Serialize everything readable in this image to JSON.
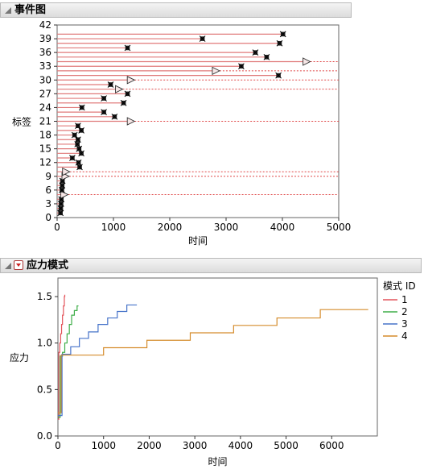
{
  "panels": {
    "event": {
      "title": "事件图"
    },
    "stress": {
      "title": "应力模式"
    }
  },
  "chart_data": [
    {
      "type": "event-plot",
      "title": "事件图",
      "xlabel": "时间",
      "ylabel": "标签",
      "xlim": [
        0,
        5000
      ],
      "ylim": [
        0,
        42
      ],
      "xticks": [
        0,
        1000,
        2000,
        3000,
        4000,
        5000
      ],
      "yticks": [
        0,
        3,
        6,
        9,
        12,
        15,
        18,
        21,
        24,
        27,
        30,
        33,
        36,
        39,
        42
      ],
      "events": [
        {
          "label": 1,
          "time": 60,
          "censored": false
        },
        {
          "label": 2,
          "time": 65,
          "censored": false
        },
        {
          "label": 3,
          "time": 70,
          "censored": false
        },
        {
          "label": 4,
          "time": 75,
          "censored": false
        },
        {
          "label": 5,
          "time": 80,
          "censored": true
        },
        {
          "label": 6,
          "time": 85,
          "censored": false
        },
        {
          "label": 7,
          "time": 90,
          "censored": false
        },
        {
          "label": 8,
          "time": 95,
          "censored": false
        },
        {
          "label": 9,
          "time": 100,
          "censored": true
        },
        {
          "label": 10,
          "time": 110,
          "censored": true
        },
        {
          "label": 11,
          "time": 400,
          "censored": false
        },
        {
          "label": 12,
          "time": 380,
          "censored": false
        },
        {
          "label": 13,
          "time": 270,
          "censored": false
        },
        {
          "label": 14,
          "time": 430,
          "censored": false
        },
        {
          "label": 15,
          "time": 390,
          "censored": false
        },
        {
          "label": 16,
          "time": 360,
          "censored": false
        },
        {
          "label": 17,
          "time": 370,
          "censored": false
        },
        {
          "label": 18,
          "time": 310,
          "censored": false
        },
        {
          "label": 19,
          "time": 430,
          "censored": false
        },
        {
          "label": 20,
          "time": 370,
          "censored": false
        },
        {
          "label": 21,
          "time": 1260,
          "censored": true
        },
        {
          "label": 22,
          "time": 1020,
          "censored": false
        },
        {
          "label": 23,
          "time": 830,
          "censored": false
        },
        {
          "label": 24,
          "time": 440,
          "censored": false
        },
        {
          "label": 25,
          "time": 1180,
          "censored": false
        },
        {
          "label": 26,
          "time": 830,
          "censored": false
        },
        {
          "label": 27,
          "time": 1250,
          "censored": false
        },
        {
          "label": 28,
          "time": 1050,
          "censored": true
        },
        {
          "label": 29,
          "time": 950,
          "censored": false
        },
        {
          "label": 30,
          "time": 1260,
          "censored": true
        },
        {
          "label": 31,
          "time": 3930,
          "censored": false
        },
        {
          "label": 32,
          "time": 2770,
          "censored": true
        },
        {
          "label": 33,
          "time": 3270,
          "censored": false
        },
        {
          "label": 34,
          "time": 4380,
          "censored": true
        },
        {
          "label": 35,
          "time": 3720,
          "censored": false
        },
        {
          "label": 36,
          "time": 3520,
          "censored": false
        },
        {
          "label": 37,
          "time": 1250,
          "censored": false
        },
        {
          "label": 38,
          "time": 3950,
          "censored": false
        },
        {
          "label": 39,
          "time": 2580,
          "censored": false
        },
        {
          "label": 40,
          "time": 4010,
          "censored": false
        }
      ]
    },
    {
      "type": "line",
      "title": "应力模式",
      "xlabel": "时间",
      "ylabel": "应力",
      "xlim": [
        0,
        7000
      ],
      "ylim": [
        0,
        1.7
      ],
      "xticks": [
        0,
        1000,
        2000,
        3000,
        4000,
        5000,
        6000
      ],
      "yticks": [
        0.0,
        0.5,
        1.0,
        1.5
      ],
      "ytick_labels": [
        "0.0",
        "0.5",
        "1.0",
        "1.5"
      ],
      "legend": {
        "title": "模式 ID",
        "placement": "right"
      },
      "series": [
        {
          "name": "1",
          "color": "#e3545b",
          "points": [
            [
              0,
              0.18
            ],
            [
              20,
              0.9
            ],
            [
              40,
              1.0
            ],
            [
              60,
              1.1
            ],
            [
              80,
              1.2
            ],
            [
              100,
              1.3
            ],
            [
              120,
              1.4
            ],
            [
              140,
              1.5
            ],
            [
              150,
              1.52
            ]
          ]
        },
        {
          "name": "2",
          "color": "#3fae49",
          "points": [
            [
              0,
              0.2
            ],
            [
              50,
              0.86
            ],
            [
              100,
              0.9
            ],
            [
              150,
              1.0
            ],
            [
              200,
              1.1
            ],
            [
              250,
              1.2
            ],
            [
              300,
              1.3
            ],
            [
              360,
              1.35
            ],
            [
              420,
              1.4
            ],
            [
              450,
              1.4
            ]
          ]
        },
        {
          "name": "3",
          "color": "#4673c9",
          "points": [
            [
              0,
              0.22
            ],
            [
              90,
              0.88
            ],
            [
              280,
              0.96
            ],
            [
              470,
              1.05
            ],
            [
              670,
              1.12
            ],
            [
              880,
              1.2
            ],
            [
              1090,
              1.27
            ],
            [
              1300,
              1.34
            ],
            [
              1510,
              1.41
            ],
            [
              1730,
              1.41
            ]
          ]
        },
        {
          "name": "4",
          "color": "#d58c2c",
          "points": [
            [
              0,
              0.25
            ],
            [
              70,
              0.87
            ],
            [
              1000,
              0.95
            ],
            [
              1950,
              1.03
            ],
            [
              2900,
              1.11
            ],
            [
              3850,
              1.19
            ],
            [
              4800,
              1.27
            ],
            [
              5750,
              1.36
            ],
            [
              6800,
              1.36
            ]
          ]
        }
      ]
    }
  ]
}
